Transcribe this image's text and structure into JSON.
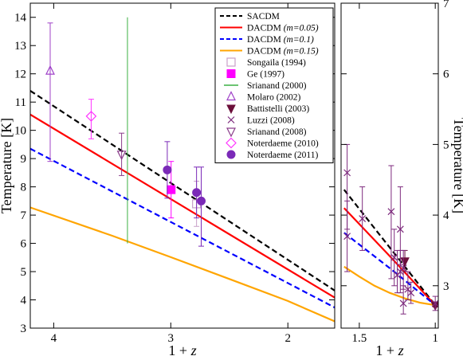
{
  "chart_data": [
    {
      "type": "line",
      "panel": "left",
      "xlabel": "1 + z",
      "ylabel": "Temperature [K]",
      "xlim": [
        4.2,
        1.6
      ],
      "ylim": [
        3,
        14.5
      ],
      "x_ticks": [
        4,
        3,
        2
      ],
      "y_ticks": [
        3,
        4,
        5,
        6,
        7,
        8,
        9,
        10,
        11,
        12,
        13,
        14
      ],
      "grid": false,
      "legend_position": "top-right",
      "curves": [
        {
          "name": "SACDM",
          "color": "#000000",
          "dash": "dashed",
          "points": [
            [
              4.2,
              11.4
            ],
            [
              1.6,
              4.33
            ]
          ]
        },
        {
          "name": "DACDM (m=0.05)",
          "color": "#ff0000",
          "dash": "solid",
          "points": [
            [
              4.2,
              10.56
            ],
            [
              1.6,
              4.08
            ]
          ]
        },
        {
          "name": "DACDM (m=0.1)",
          "color": "#0000ff",
          "dash": "dashed",
          "points": [
            [
              4.2,
              9.35
            ],
            [
              1.6,
              3.73
            ]
          ]
        },
        {
          "name": "DACDM (m=0.15)",
          "color": "#ffa500",
          "dash": "solid",
          "points": [
            [
              4.2,
              7.27
            ],
            [
              3.5,
              6.27
            ],
            [
              3.0,
              5.51
            ],
            [
              2.5,
              4.74
            ],
            [
              2.0,
              3.96
            ],
            [
              1.6,
              3.24
            ]
          ]
        }
      ],
      "series": [
        {
          "name": "Songaila (1994)",
          "marker": "open-square",
          "color": "#c8a0c8",
          "points": [
            {
              "x": 2.78,
              "y": 7.4,
              "lo": 6.6,
              "hi": 8.2
            }
          ]
        },
        {
          "name": "Ge (1997)",
          "marker": "filled-square",
          "color": "#ff00ff",
          "points": [
            {
              "x": 2.997,
              "y": 7.9,
              "lo": 6.9,
              "hi": 8.9
            }
          ]
        },
        {
          "name": "Srianand (2000)",
          "marker": "line",
          "color": "#3cb043",
          "points": [
            {
              "x": 3.37,
              "y": 10.0,
              "lo": 6.0,
              "hi": 14.0
            }
          ]
        },
        {
          "name": "Molaro (2002)",
          "marker": "open-triangle-up",
          "color": "#9f41c8",
          "points": [
            {
              "x": 4.03,
              "y": 12.1,
              "lo": 8.9,
              "hi": 13.8
            }
          ]
        },
        {
          "name": "Battistelli (2003)",
          "marker": "filled-triangle-down",
          "color": "#6b0f3a",
          "points": []
        },
        {
          "name": "Luzzi (2008)",
          "marker": "x",
          "color": "#7d2a7d",
          "points": []
        },
        {
          "name": "Srianand (2008)",
          "marker": "open-triangle-down",
          "color": "#8a3c8a",
          "points": [
            {
              "x": 3.42,
              "y": 9.15,
              "lo": 8.4,
              "hi": 9.9
            }
          ]
        },
        {
          "name": "Noterdaeme (2010)",
          "marker": "open-diamond",
          "color": "#ff33ff",
          "points": [
            {
              "x": 3.68,
              "y": 10.5,
              "lo": 9.7,
              "hi": 11.1
            }
          ]
        },
        {
          "name": "Noterdaeme (2011)",
          "marker": "filled-circle",
          "color": "#7b2ab8",
          "points": [
            {
              "x": 3.03,
              "y": 8.6,
              "lo": 7.6,
              "hi": 9.6
            },
            {
              "x": 2.78,
              "y": 7.8,
              "lo": 6.9,
              "hi": 8.7
            },
            {
              "x": 2.74,
              "y": 7.5,
              "lo": 5.9,
              "hi": 8.7
            }
          ]
        }
      ]
    },
    {
      "type": "line",
      "panel": "right",
      "xlabel": "1 + z",
      "ylabel": "Temperature [K]",
      "xlim": [
        1.62,
        0.98
      ],
      "ylim": [
        2.4,
        7
      ],
      "x_ticks": [
        1.5,
        1
      ],
      "y_ticks": [
        3,
        4,
        5,
        6,
        7
      ],
      "grid": false,
      "curves": [
        {
          "name": "SACDM",
          "color": "#000000",
          "dash": "dashed",
          "points": [
            [
              1.6,
              4.36
            ],
            [
              1.0,
              2.725
            ]
          ]
        },
        {
          "name": "DACDM (m=0.05)",
          "color": "#ff0000",
          "dash": "solid",
          "points": [
            [
              1.6,
              4.1
            ],
            [
              1.3,
              3.42
            ],
            [
              1.0,
              2.725
            ]
          ]
        },
        {
          "name": "DACDM (m=0.1)",
          "color": "#0000ff",
          "dash": "dashed",
          "points": [
            [
              1.6,
              3.75
            ],
            [
              1.3,
              3.25
            ],
            [
              1.0,
              2.725
            ]
          ]
        },
        {
          "name": "DACDM (m=0.15)",
          "color": "#ffa500",
          "dash": "solid",
          "points": [
            [
              1.6,
              3.27
            ],
            [
              1.5,
              3.13
            ],
            [
              1.4,
              3.0
            ],
            [
              1.3,
              2.9
            ],
            [
              1.2,
              2.82
            ],
            [
              1.1,
              2.76
            ],
            [
              1.0,
              2.725
            ]
          ]
        }
      ],
      "series": [
        {
          "name": "Battistelli (2003)",
          "marker": "filled-triangle-down",
          "color": "#6b0f3a",
          "points": [
            {
              "x": 1.2,
              "y": 3.35,
              "lo": 3.2,
              "hi": 3.5
            },
            {
              "x": 1.0,
              "y": 2.725,
              "lo": 2.7,
              "hi": 2.75
            }
          ]
        },
        {
          "name": "Luzzi (2008)",
          "marker": "x",
          "color": "#7d2a7d",
          "points": [
            {
              "x": 1.58,
              "y": 4.6,
              "lo": 3.8,
              "hi": 5.0
            },
            {
              "x": 1.58,
              "y": 3.7,
              "lo": 3.2,
              "hi": 4.2
            },
            {
              "x": 1.48,
              "y": 3.95,
              "lo": 3.5,
              "hi": 4.4
            },
            {
              "x": 1.29,
              "y": 4.05,
              "lo": 3.1,
              "hi": 4.7
            },
            {
              "x": 1.27,
              "y": 3.4,
              "lo": 3.0,
              "hi": 3.8
            },
            {
              "x": 1.25,
              "y": 3.15,
              "lo": 2.9,
              "hi": 3.5
            },
            {
              "x": 1.23,
              "y": 3.8,
              "lo": 3.3,
              "hi": 4.4
            },
            {
              "x": 1.23,
              "y": 3.2,
              "lo": 2.9,
              "hi": 3.5
            },
            {
              "x": 1.21,
              "y": 3.25,
              "lo": 2.95,
              "hi": 3.5
            },
            {
              "x": 1.21,
              "y": 2.75,
              "lo": 2.6,
              "hi": 3.0
            },
            {
              "x": 1.18,
              "y": 2.95,
              "lo": 2.8,
              "hi": 3.2
            },
            {
              "x": 1.16,
              "y": 2.9,
              "lo": 2.75,
              "hi": 3.05
            },
            {
              "x": 1.0,
              "y": 2.75,
              "lo": 2.65,
              "hi": 2.85
            }
          ]
        }
      ]
    }
  ],
  "legend": {
    "entries": [
      {
        "label": "SACDM",
        "note": "",
        "kind": "dashed",
        "color": "#000000"
      },
      {
        "label": "DACDM ",
        "note": "(m=0.05)",
        "kind": "solid",
        "color": "#ff0000"
      },
      {
        "label": "DACDM ",
        "note": "(m=0.1)",
        "kind": "dashed",
        "color": "#0000ff"
      },
      {
        "label": "DACDM ",
        "note": "(m=0.15)",
        "kind": "solid",
        "color": "#ffa500"
      },
      {
        "label": "Songaila (1994)",
        "note": "",
        "kind": "open-square",
        "color": "#c8a0c8"
      },
      {
        "label": "Ge (1997)",
        "note": "",
        "kind": "filled-square",
        "color": "#ff00ff"
      },
      {
        "label": "Srianand (2000)",
        "note": "",
        "kind": "line",
        "color": "#3cb043"
      },
      {
        "label": "Molaro (2002)",
        "note": "",
        "kind": "open-triangle-up",
        "color": "#9f41c8"
      },
      {
        "label": "Battistelli (2003)",
        "note": "",
        "kind": "filled-triangle-down",
        "color": "#6b0f3a"
      },
      {
        "label": "Luzzi (2008)",
        "note": "",
        "kind": "x",
        "color": "#7d2a7d"
      },
      {
        "label": "Srianand (2008)",
        "note": "",
        "kind": "open-triangle-down",
        "color": "#8a3c8a"
      },
      {
        "label": "Noterdaeme (2010)",
        "note": "",
        "kind": "open-diamond",
        "color": "#ff33ff"
      },
      {
        "label": "Noterdaeme (2011)",
        "note": "",
        "kind": "filled-circle",
        "color": "#7b2ab8"
      }
    ]
  }
}
